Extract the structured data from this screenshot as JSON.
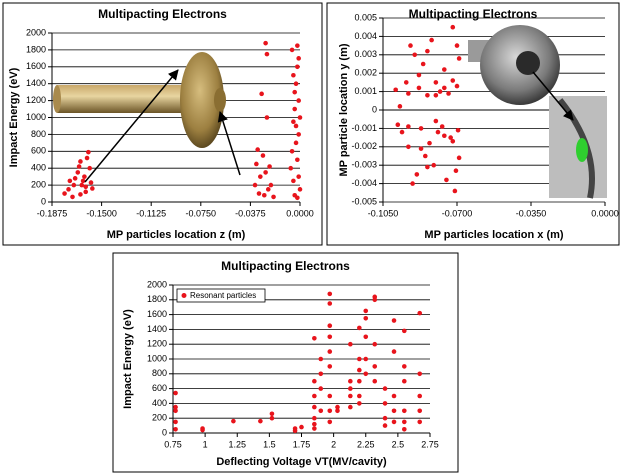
{
  "chart_data": [
    {
      "type": "scatter",
      "title": "Multipacting Electrons",
      "x_label": "MP particles location z (m)",
      "y_label": "Impact Energy (eV)",
      "xlim": [
        -0.1875,
        0
      ],
      "xticks": [
        {
          "value": -0.1875,
          "label": "-0.1875"
        },
        {
          "value": -0.15,
          "label": "-0.1500"
        },
        {
          "value": -0.1125,
          "label": "-0.1125"
        },
        {
          "value": -0.075,
          "label": "-0.0750"
        },
        {
          "value": -0.0375,
          "label": "-0.0375"
        },
        {
          "value": 0,
          "label": "0.0000"
        }
      ],
      "ylim": [
        0,
        2000
      ],
      "yticks": [
        0,
        200,
        400,
        600,
        800,
        1000,
        1200,
        1400,
        1600,
        1800,
        2000
      ],
      "grid": true,
      "series": [
        {
          "color": "#e8141c",
          "x": [
            -0.178,
            -0.175,
            -0.172,
            -0.17,
            -0.168,
            -0.167,
            -0.166,
            -0.165,
            -0.164,
            -0.163,
            -0.162,
            -0.161,
            -0.16,
            -0.162,
            -0.166,
            -0.158,
            -0.157,
            -0.159,
            -0.171,
            -0.174,
            -0.034,
            -0.033,
            -0.032,
            -0.031,
            -0.03,
            -0.029,
            -0.028,
            -0.027,
            -0.026,
            -0.025,
            -0.024,
            -0.022,
            -0.02,
            -0.023,
            -0.026,
            -0.025,
            -0.006,
            -0.005,
            -0.004,
            -0.004,
            -0.003,
            -0.003,
            -0.002,
            -0.002,
            -0.002,
            -0.001,
            -0.001,
            0,
            0,
            -0.004,
            -0.005,
            -0.006,
            -0.003,
            -0.001,
            -0.007,
            -0.002,
            -0.001,
            -0.005
          ],
          "values": [
            100,
            150,
            60,
            280,
            350,
            420,
            480,
            200,
            250,
            300,
            180,
            520,
            590,
            120,
            90,
            230,
            160,
            400,
            200,
            250,
            200,
            450,
            620,
            100,
            300,
            1280,
            550,
            80,
            350,
            1000,
            150,
            200,
            60,
            420,
            1880,
            1750,
            1800,
            1500,
            1300,
            1100,
            900,
            700,
            1850,
            1600,
            500,
            300,
            1200,
            1000,
            150,
            80,
            250,
            600,
            1400,
            1700,
            400,
            50,
            800,
            950
          ]
        }
      ]
    },
    {
      "type": "scatter",
      "title": "Multipacting Electrons",
      "x_label": "MP particles location x (m)",
      "y_label": "MP particle location y (m)",
      "xlim": [
        -0.105,
        0
      ],
      "xticks": [
        {
          "value": -0.105,
          "label": "-0.1050"
        },
        {
          "value": -0.07,
          "label": "-0.0700"
        },
        {
          "value": -0.035,
          "label": "-0.0350"
        },
        {
          "value": 0,
          "label": "0.0000"
        }
      ],
      "ylim": [
        -0.005,
        0.005
      ],
      "yticks": [
        -0.005,
        -0.004,
        -0.003,
        -0.002,
        -0.001,
        0,
        0.001,
        0.002,
        0.003,
        0.004,
        0.005
      ],
      "grid": true,
      "series": [
        {
          "color": "#e8141c",
          "x": [
            -0.099,
            -0.098,
            -0.097,
            -0.096,
            -0.094,
            -0.093,
            -0.092,
            -0.091,
            -0.09,
            -0.089,
            -0.088,
            -0.087,
            -0.086,
            -0.085,
            -0.084,
            -0.083,
            -0.082,
            -0.081,
            -0.08,
            -0.079,
            -0.078,
            -0.077,
            -0.076,
            -0.075,
            -0.074,
            -0.073,
            -0.072,
            -0.071,
            -0.07,
            -0.0695,
            -0.069,
            -0.069,
            -0.07,
            -0.0705,
            -0.088,
            -0.087,
            -0.08,
            -0.08,
            -0.076,
            -0.076,
            -0.072,
            -0.072,
            -0.084,
            -0.084,
            -0.093,
            -0.093
          ],
          "values": [
            0.0011,
            -0.0008,
            0.0002,
            -0.0012,
            0.0015,
            -0.002,
            0.0035,
            -0.004,
            0.003,
            -0.0035,
            0.0012,
            -0.001,
            0.0025,
            -0.0025,
            0.0008,
            -0.0018,
            0.0038,
            -0.003,
            0.0015,
            -0.0012,
            0.001,
            -0.0009,
            0.0022,
            -0.0038,
            0.0009,
            -0.0015,
            0.0045,
            -0.0044,
            0.0013,
            -0.0011,
            0.0028,
            -0.0026,
            0.0035,
            -0.0033,
            0.0019,
            -0.0021,
            0.0008,
            -0.0006,
            0.0012,
            -0.0014,
            0.0016,
            -0.0017,
            0.0032,
            -0.0031,
            0.0009,
            -0.0009
          ]
        }
      ]
    },
    {
      "type": "scatter",
      "title": "Multipacting Electrons",
      "x_label": "Deflecting Voltage VT(MV/cavity)",
      "y_label": "Impact Energy (eV)",
      "xlim": [
        0.75,
        2.75
      ],
      "xticks": [
        0.75,
        1,
        1.25,
        1.5,
        1.75,
        2,
        2.25,
        2.5,
        2.75
      ],
      "ylim": [
        0,
        2000
      ],
      "yticks": [
        0,
        200,
        400,
        600,
        800,
        1000,
        1200,
        1400,
        1600,
        1800,
        2000
      ],
      "grid": true,
      "legend": "upper-left",
      "series": [
        {
          "name": "Resonant particles",
          "color": "#e8141c",
          "x": [
            0.77,
            0.77,
            0.77,
            0.77,
            0.77,
            0.98,
            0.98,
            1.22,
            1.43,
            1.52,
            1.52,
            1.7,
            1.7,
            1.75,
            1.85,
            1.85,
            1.85,
            1.85,
            1.85,
            1.85,
            1.85,
            1.9,
            1.9,
            1.9,
            1.9,
            1.97,
            1.97,
            1.97,
            1.97,
            1.97,
            1.97,
            1.97,
            1.97,
            1.97,
            2.03,
            2.03,
            2.13,
            2.13,
            2.13,
            2.13,
            2.13,
            2.2,
            2.2,
            2.2,
            2.2,
            2.2,
            2.2,
            2.25,
            2.25,
            2.25,
            2.25,
            2.25,
            2.32,
            2.32,
            2.32,
            2.32,
            2.32,
            2.4,
            2.4,
            2.4,
            2.4,
            2.47,
            2.47,
            2.47,
            2.47,
            2.47,
            2.55,
            2.55,
            2.55,
            2.55,
            2.55,
            2.55,
            2.67,
            2.67,
            2.67,
            2.67,
            2.67
          ],
          "values": [
            540,
            350,
            300,
            150,
            50,
            60,
            40,
            160,
            160,
            260,
            200,
            60,
            30,
            80,
            1280,
            700,
            500,
            350,
            200,
            120,
            60,
            1000,
            800,
            600,
            300,
            1880,
            1750,
            1450,
            1300,
            1100,
            900,
            500,
            300,
            150,
            350,
            300,
            1200,
            700,
            600,
            500,
            350,
            1420,
            1000,
            850,
            700,
            500,
            400,
            1650,
            1550,
            1300,
            1000,
            800,
            1840,
            1800,
            1200,
            900,
            700,
            600,
            400,
            200,
            100,
            1520,
            1100,
            500,
            300,
            150,
            1380,
            900,
            700,
            300,
            150,
            50,
            1620,
            800,
            500,
            300,
            150
          ]
        }
      ]
    }
  ]
}
